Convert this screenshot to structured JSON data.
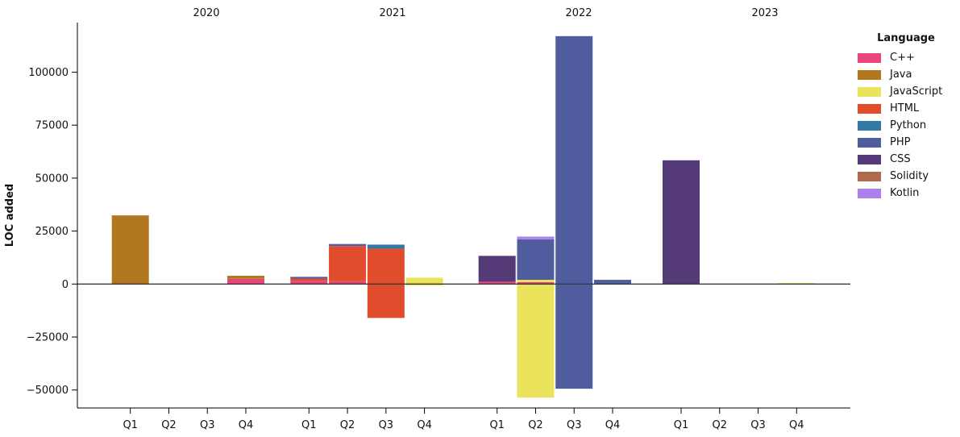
{
  "chart_data": {
    "type": "bar",
    "stacked": true,
    "title": "",
    "xlabel": "",
    "ylabel": "LOC added",
    "ylim": [
      -59000,
      123500
    ],
    "grid": false,
    "year_groups": [
      "2020",
      "2021",
      "2022",
      "2023"
    ],
    "quarters": [
      "Q1",
      "Q2",
      "Q3",
      "Q4"
    ],
    "yticks": [
      {
        "value": 100000,
        "label": "100000"
      },
      {
        "value": 75000,
        "label": "75000"
      },
      {
        "value": 50000,
        "label": "50000"
      },
      {
        "value": 25000,
        "label": "25000"
      },
      {
        "value": 0,
        "label": "0"
      },
      {
        "value": -25000,
        "label": "−25000"
      },
      {
        "value": -50000,
        "label": "−50000"
      }
    ],
    "legend": {
      "title": "Language",
      "position": "outside-upper-right",
      "entries": [
        {
          "name": "C++",
          "color": "#e8457b"
        },
        {
          "name": "Java",
          "color": "#b0771f"
        },
        {
          "name": "JavaScript",
          "color": "#ece35c"
        },
        {
          "name": "HTML",
          "color": "#e04c2c"
        },
        {
          "name": "Python",
          "color": "#3379a6"
        },
        {
          "name": "PHP",
          "color": "#4f5d9f"
        },
        {
          "name": "CSS",
          "color": "#543b77"
        },
        {
          "name": "Solidity",
          "color": "#ad6a4e"
        },
        {
          "name": "Kotlin",
          "color": "#ae80ec"
        }
      ]
    },
    "bars": [
      {
        "year": "2020",
        "quarter": "Q1",
        "pos": [
          {
            "language": "Java",
            "value": 32400
          }
        ],
        "neg": []
      },
      {
        "year": "2020",
        "quarter": "Q4",
        "pos": [
          {
            "language": "C++",
            "value": 2500
          },
          {
            "language": "Java",
            "value": 1400
          }
        ],
        "neg": []
      },
      {
        "year": "2021",
        "quarter": "Q1",
        "pos": [
          {
            "language": "C++",
            "value": 1500
          },
          {
            "language": "HTML",
            "value": 1100
          },
          {
            "language": "PHP",
            "value": 800
          }
        ],
        "neg": []
      },
      {
        "year": "2021",
        "quarter": "Q2",
        "pos": [
          {
            "language": "C++",
            "value": 1300
          },
          {
            "language": "HTML",
            "value": 16600
          },
          {
            "language": "PHP",
            "value": 1000
          }
        ],
        "neg": []
      },
      {
        "year": "2021",
        "quarter": "Q3",
        "pos": [
          {
            "language": "HTML",
            "value": 16700
          },
          {
            "language": "Python",
            "value": 1900
          }
        ],
        "neg": [
          {
            "language": "HTML",
            "value": -16000
          }
        ]
      },
      {
        "year": "2021",
        "quarter": "Q4",
        "pos": [
          {
            "language": "JavaScript",
            "value": 3000
          }
        ],
        "neg": [
          {
            "language": "JavaScript",
            "value": -700
          }
        ]
      },
      {
        "year": "2022",
        "quarter": "Q1",
        "pos": [
          {
            "language": "C++",
            "value": 1100
          },
          {
            "language": "CSS",
            "value": 12200
          }
        ],
        "neg": []
      },
      {
        "year": "2022",
        "quarter": "Q2",
        "pos": [
          {
            "language": "C++",
            "value": 900
          },
          {
            "language": "JavaScript",
            "value": 1100
          },
          {
            "language": "PHP",
            "value": 19100
          },
          {
            "language": "Kotlin",
            "value": 1300
          }
        ],
        "neg": [
          {
            "language": "JavaScript",
            "value": -53600
          }
        ]
      },
      {
        "year": "2022",
        "quarter": "Q3",
        "pos": [
          {
            "language": "PHP",
            "value": 117000
          }
        ],
        "neg": [
          {
            "language": "PHP",
            "value": -49400
          }
        ]
      },
      {
        "year": "2022",
        "quarter": "Q4",
        "pos": [
          {
            "language": "PHP",
            "value": 2000
          }
        ],
        "neg": []
      },
      {
        "year": "2023",
        "quarter": "Q1",
        "pos": [
          {
            "language": "CSS",
            "value": 58400
          }
        ],
        "neg": []
      },
      {
        "year": "2023",
        "quarter": "Q4",
        "pos": [
          {
            "language": "JavaScript",
            "value": 500
          }
        ],
        "neg": []
      }
    ]
  }
}
